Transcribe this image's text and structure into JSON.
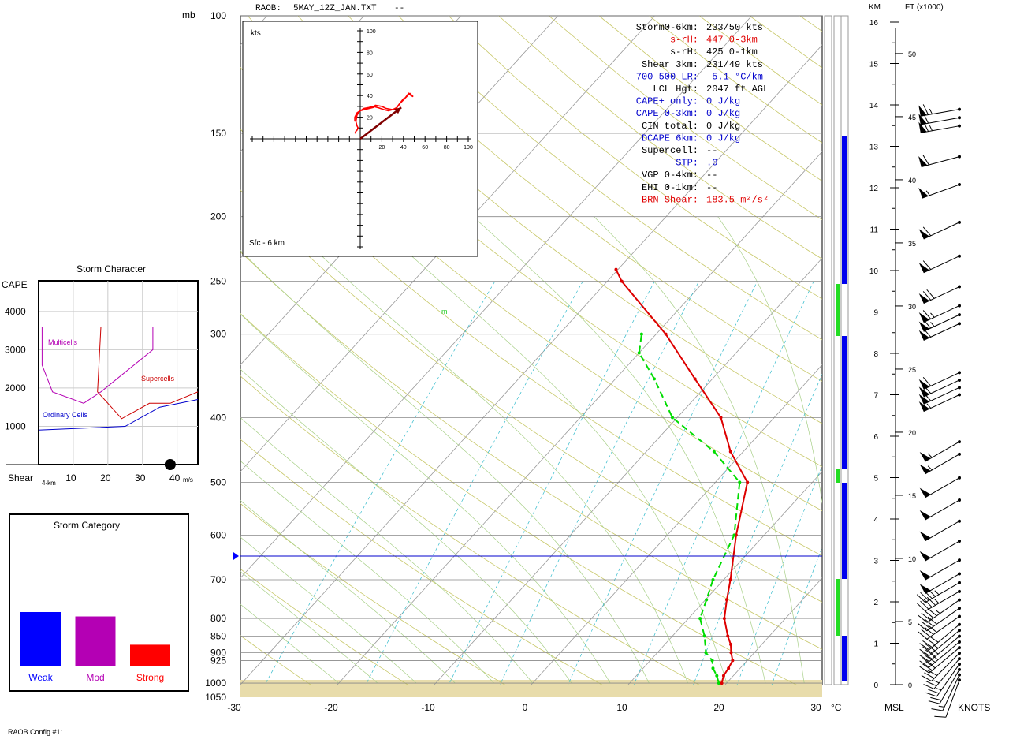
{
  "header": {
    "raob_label": "RAOB:",
    "file_name": "5MAY_12Z_JAN.TXT",
    "dash": "--"
  },
  "footer": {
    "config_label": "RAOB Config #1:"
  },
  "axes": {
    "pressure_unit": "mb",
    "temperature_unit": "°C",
    "height_km_label": "KM",
    "height_ft_label": "FT (x1000)",
    "msl_label": "MSL",
    "knots_label": "KNOTS",
    "pressure_ticks": [
      100,
      150,
      200,
      250,
      300,
      400,
      500,
      600,
      700,
      800,
      850,
      900,
      925,
      1000,
      1050
    ],
    "temperature_ticks": [
      -30,
      -20,
      -10,
      0,
      10,
      20,
      30
    ],
    "km_ticks": [
      0,
      1,
      2,
      3,
      4,
      5,
      6,
      7,
      8,
      9,
      10,
      11,
      12,
      13,
      14,
      15,
      16
    ],
    "kft_ticks": [
      0,
      5,
      10,
      15,
      20,
      25,
      30,
      35,
      40,
      45,
      50
    ]
  },
  "lcl_marker": {
    "label": "m"
  },
  "indices": [
    {
      "label": "Storm0-6km:",
      "value": "233/50 kts",
      "color": "#000000"
    },
    {
      "label": "s-rH:",
      "value": "447  0-3km",
      "color": "#e00000"
    },
    {
      "label": "s-rH:",
      "value": "425  0-1km",
      "color": "#000000"
    },
    {
      "label": "Shear 3km:",
      "value": "231/49 kts",
      "color": "#000000"
    },
    {
      "label": "700-500 LR:",
      "value": "-5.1 °C/km",
      "color": "#0000cc"
    },
    {
      "label": "LCL Hgt:",
      "value": "2047 ft AGL",
      "color": "#000000"
    },
    {
      "label": "CAPE+ only:",
      "value": "0 J/kg",
      "color": "#0000cc"
    },
    {
      "label": "CAPE 0-3km:",
      "value": "0 J/kg",
      "color": "#0000cc"
    },
    {
      "label": "CIN total:",
      "value": "0 J/kg",
      "color": "#000000"
    },
    {
      "label": "DCAPE 6km:",
      "value": "0 J/kg",
      "color": "#0000cc"
    },
    {
      "label": "Supercell:",
      "value": "--",
      "color": "#000000"
    },
    {
      "label": "STP:",
      "value": ".0",
      "color": "#0000cc"
    },
    {
      "label": "VGP 0-4km:",
      "value": "--",
      "color": "#000000"
    },
    {
      "label": "EHI 0-1km:",
      "value": "--",
      "color": "#000000"
    },
    {
      "label": "BRN Shear:",
      "value": "183.5 m²/s²",
      "color": "#e00000"
    }
  ],
  "hodograph": {
    "units_label": "kts",
    "layer_label": "Sfc - 6 km",
    "ticks": [
      20,
      40,
      60,
      80,
      100
    ],
    "trace_uv": [
      [
        -5,
        5
      ],
      [
        -4,
        7
      ],
      [
        -3,
        8
      ],
      [
        -2,
        10
      ],
      [
        -3,
        12
      ],
      [
        -4,
        16
      ],
      [
        -3,
        22
      ],
      [
        -1,
        25
      ],
      [
        3,
        28
      ],
      [
        8,
        29
      ],
      [
        12,
        30
      ],
      [
        16,
        29
      ],
      [
        22,
        27
      ],
      [
        26,
        26
      ],
      [
        30,
        27
      ],
      [
        33,
        28
      ],
      [
        36,
        32
      ],
      [
        40,
        37
      ],
      [
        42,
        38
      ],
      [
        44,
        40
      ],
      [
        45,
        42
      ],
      [
        47,
        40
      ],
      [
        49,
        39
      ],
      [
        46,
        42
      ],
      [
        44,
        41
      ],
      [
        41,
        37
      ],
      [
        37,
        33
      ],
      [
        34,
        29
      ],
      [
        30,
        27
      ],
      [
        24,
        28
      ],
      [
        20,
        30
      ],
      [
        14,
        31
      ],
      [
        12,
        29
      ],
      [
        8,
        28
      ],
      [
        4,
        27
      ],
      [
        0,
        26
      ],
      [
        -3,
        24
      ],
      [
        -5,
        20
      ],
      [
        -5,
        16
      ]
    ],
    "storm_motion_uv": [
      38,
      29
    ],
    "storm_motion_label": "Storm0-6km: 233/50 kts"
  },
  "storm_character": {
    "title": "Storm Character",
    "cape_label": "CAPE",
    "shear_label": "Shear",
    "shear_sublabel": "4-km",
    "units_label": "m/s",
    "y_ticks": [
      1000,
      2000,
      3000,
      4000
    ],
    "x_ticks": [
      10,
      20,
      30,
      40
    ],
    "region_labels": {
      "multicells": "Multicells",
      "supercells": "Supercells",
      "ordinary": "Ordinary Cells"
    },
    "point": {
      "shear_ms": 38,
      "cape": 0
    },
    "ordinary_cells_curve": [
      [
        0,
        900
      ],
      [
        25,
        1000
      ],
      [
        35,
        1500
      ],
      [
        46,
        1700
      ]
    ],
    "supercells_curve": [
      [
        18,
        3600
      ],
      [
        17,
        1900
      ],
      [
        24,
        1200
      ],
      [
        32,
        1600
      ],
      [
        38,
        1600
      ],
      [
        46,
        1900
      ]
    ],
    "multicells_curve": [
      [
        1,
        3600
      ],
      [
        1,
        2600
      ],
      [
        4,
        1900
      ],
      [
        13,
        1600
      ],
      [
        18,
        1900
      ],
      [
        33,
        3000
      ],
      [
        33,
        3600
      ]
    ]
  },
  "storm_category": {
    "title": "Storm Category",
    "bars": [
      {
        "label": "Weak",
        "value": 1.0,
        "color": "#0000ff"
      },
      {
        "label": "Mod",
        "value": 0.92,
        "color": "#b400b4"
      },
      {
        "label": "Strong",
        "value": 0.4,
        "color": "#ff0000"
      }
    ]
  },
  "chart_data": {
    "type": "line",
    "title": "",
    "xlabel": "°C",
    "ylabel": "mb",
    "xlim": [
      -30,
      30
    ],
    "ylim": [
      1050,
      100
    ],
    "series": [
      {
        "name": "Temperature",
        "color": "#dd0000",
        "points": [
          [
            1000,
            19.5
          ],
          [
            975,
            19.0
          ],
          [
            950,
            18.8
          ],
          [
            925,
            18.5
          ],
          [
            900,
            17.6
          ],
          [
            875,
            16.8
          ],
          [
            850,
            15.7
          ],
          [
            800,
            13.7
          ],
          [
            750,
            12.2
          ],
          [
            700,
            10.7
          ],
          [
            600,
            7.1
          ],
          [
            500,
            3.3
          ],
          [
            450,
            -1.3
          ],
          [
            400,
            -5.5
          ],
          [
            350,
            -11.8
          ],
          [
            300,
            -19.0
          ],
          [
            250,
            -28.5
          ],
          [
            240,
            -30.2
          ]
        ]
      },
      {
        "name": "Dewpoint",
        "color": "#00dd00",
        "points": [
          [
            1000,
            19.2
          ],
          [
            975,
            18.3
          ],
          [
            950,
            17.2
          ],
          [
            925,
            16.4
          ],
          [
            900,
            15.0
          ],
          [
            850,
            13.3
          ],
          [
            800,
            11.2
          ],
          [
            750,
            10.1
          ],
          [
            700,
            8.9
          ],
          [
            600,
            6.9
          ],
          [
            500,
            2.5
          ],
          [
            450,
            -3.0
          ],
          [
            400,
            -10.5
          ],
          [
            350,
            -16.0
          ],
          [
            320,
            -20.0
          ],
          [
            300,
            -21.5
          ]
        ]
      }
    ],
    "height_km_levels": [
      0,
      1,
      2,
      3,
      4,
      5,
      6,
      7,
      8,
      9,
      10,
      11,
      12,
      13,
      14,
      15,
      16
    ],
    "wind_barbs": [
      {
        "pressure": 1000,
        "dir": 200,
        "speed": 10
      },
      {
        "pressure": 985,
        "dir": 205,
        "speed": 15
      },
      {
        "pressure": 970,
        "dir": 210,
        "speed": 20
      },
      {
        "pressure": 955,
        "dir": 215,
        "speed": 25
      },
      {
        "pressure": 940,
        "dir": 220,
        "speed": 25
      },
      {
        "pressure": 925,
        "dir": 225,
        "speed": 30
      },
      {
        "pressure": 910,
        "dir": 230,
        "speed": 30
      },
      {
        "pressure": 895,
        "dir": 230,
        "speed": 35
      },
      {
        "pressure": 880,
        "dir": 230,
        "speed": 35
      },
      {
        "pressure": 865,
        "dir": 230,
        "speed": 35
      },
      {
        "pressure": 850,
        "dir": 230,
        "speed": 40
      },
      {
        "pressure": 830,
        "dir": 235,
        "speed": 40
      },
      {
        "pressure": 810,
        "dir": 235,
        "speed": 40
      },
      {
        "pressure": 790,
        "dir": 235,
        "speed": 45
      },
      {
        "pressure": 770,
        "dir": 240,
        "speed": 45
      },
      {
        "pressure": 750,
        "dir": 240,
        "speed": 45
      },
      {
        "pressure": 730,
        "dir": 240,
        "speed": 50
      },
      {
        "pressure": 700,
        "dir": 240,
        "speed": 50
      },
      {
        "pressure": 660,
        "dir": 240,
        "speed": 50
      },
      {
        "pressure": 620,
        "dir": 240,
        "speed": 50
      },
      {
        "pressure": 580,
        "dir": 240,
        "speed": 50
      },
      {
        "pressure": 540,
        "dir": 240,
        "speed": 50
      },
      {
        "pressure": 500,
        "dir": 240,
        "speed": 55
      },
      {
        "pressure": 480,
        "dir": 240,
        "speed": 55
      },
      {
        "pressure": 410,
        "dir": 245,
        "speed": 55
      },
      {
        "pressure": 400,
        "dir": 245,
        "speed": 60
      },
      {
        "pressure": 390,
        "dir": 245,
        "speed": 60
      },
      {
        "pressure": 380,
        "dir": 245,
        "speed": 60
      },
      {
        "pressure": 320,
        "dir": 245,
        "speed": 60
      },
      {
        "pressure": 310,
        "dir": 245,
        "speed": 65
      },
      {
        "pressure": 300,
        "dir": 245,
        "speed": 65
      },
      {
        "pressure": 280,
        "dir": 245,
        "speed": 70
      },
      {
        "pressure": 250,
        "dir": 245,
        "speed": 60
      },
      {
        "pressure": 220,
        "dir": 245,
        "speed": 60
      },
      {
        "pressure": 190,
        "dir": 250,
        "speed": 55
      },
      {
        "pressure": 170,
        "dir": 255,
        "speed": 60
      },
      {
        "pressure": 150,
        "dir": 260,
        "speed": 65
      },
      {
        "pressure": 145,
        "dir": 260,
        "speed": 60
      },
      {
        "pressure": 140,
        "dir": 260,
        "speed": 65
      }
    ],
    "annotation": {
      "pressure": 650,
      "label": "LCL marker"
    }
  }
}
